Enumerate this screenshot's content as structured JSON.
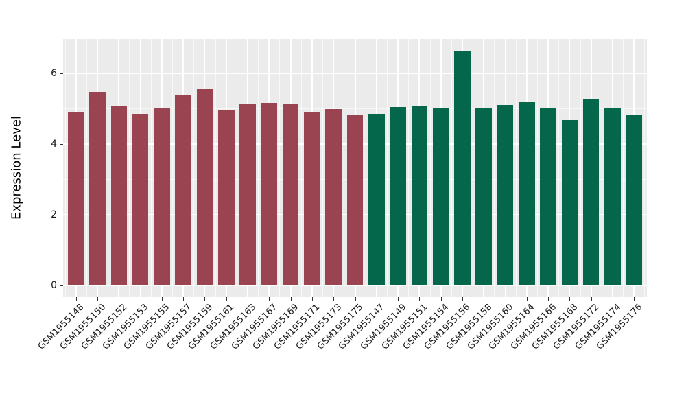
{
  "figure": {
    "background": "#FFFFFF",
    "panel_background": "#EBEBEB",
    "grid_color": "#FFFFFF",
    "tick_color": "#333333",
    "text_color": "#1A1A1A"
  },
  "chart_data": {
    "type": "bar",
    "title": "",
    "xlabel": "",
    "ylabel": "Expression Level",
    "ylim": [
      -0.33,
      6.96
    ],
    "yticks": [
      0,
      2,
      4,
      6
    ],
    "yticks_minor": [
      1,
      3,
      5
    ],
    "legend": "none",
    "grid": "white major and minor gridlines on gray panel",
    "bar_width_fraction": 0.75,
    "group_colors": {
      "groupA": "#9A4451",
      "groupB": "#04664A"
    },
    "bars": [
      {
        "label": "GSM1955148",
        "value": 4.91,
        "group": "groupA"
      },
      {
        "label": "GSM1955150",
        "value": 5.46,
        "group": "groupA"
      },
      {
        "label": "GSM1955152",
        "value": 5.06,
        "group": "groupA"
      },
      {
        "label": "GSM1955153",
        "value": 4.85,
        "group": "groupA"
      },
      {
        "label": "GSM1955155",
        "value": 5.03,
        "group": "groupA"
      },
      {
        "label": "GSM1955157",
        "value": 5.39,
        "group": "groupA"
      },
      {
        "label": "GSM1955159",
        "value": 5.56,
        "group": "groupA"
      },
      {
        "label": "GSM1955161",
        "value": 4.97,
        "group": "groupA"
      },
      {
        "label": "GSM1955163",
        "value": 5.11,
        "group": "groupA"
      },
      {
        "label": "GSM1955167",
        "value": 5.16,
        "group": "groupA"
      },
      {
        "label": "GSM1955169",
        "value": 5.11,
        "group": "groupA"
      },
      {
        "label": "GSM1955171",
        "value": 4.91,
        "group": "groupA"
      },
      {
        "label": "GSM1955173",
        "value": 4.98,
        "group": "groupA"
      },
      {
        "label": "GSM1955175",
        "value": 4.82,
        "group": "groupA"
      },
      {
        "label": "GSM1955147",
        "value": 4.85,
        "group": "groupB"
      },
      {
        "label": "GSM1955149",
        "value": 5.05,
        "group": "groupB"
      },
      {
        "label": "GSM1955151",
        "value": 5.07,
        "group": "groupB"
      },
      {
        "label": "GSM1955154",
        "value": 5.02,
        "group": "groupB"
      },
      {
        "label": "GSM1955156",
        "value": 6.63,
        "group": "groupB"
      },
      {
        "label": "GSM1955158",
        "value": 5.02,
        "group": "groupB"
      },
      {
        "label": "GSM1955160",
        "value": 5.09,
        "group": "groupB"
      },
      {
        "label": "GSM1955164",
        "value": 5.2,
        "group": "groupB"
      },
      {
        "label": "GSM1955166",
        "value": 5.02,
        "group": "groupB"
      },
      {
        "label": "GSM1955168",
        "value": 4.68,
        "group": "groupB"
      },
      {
        "label": "GSM1955172",
        "value": 5.28,
        "group": "groupB"
      },
      {
        "label": "GSM1955174",
        "value": 5.02,
        "group": "groupB"
      },
      {
        "label": "GSM1955176",
        "value": 4.8,
        "group": "groupB"
      }
    ]
  }
}
